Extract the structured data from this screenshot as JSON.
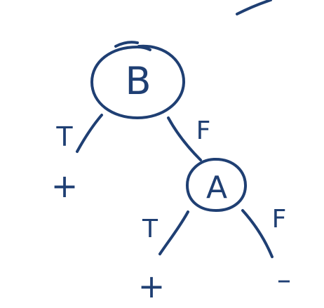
{
  "diagram": {
    "type": "decision-tree",
    "ink_color": "#1f3f73",
    "root": {
      "label": "B",
      "true_edge": "T",
      "true_leaf": "+",
      "false_edge": "F",
      "false_child": {
        "label": "A",
        "true_edge": "T",
        "true_leaf": "+",
        "false_edge": "F",
        "false_leaf": "–"
      }
    }
  }
}
